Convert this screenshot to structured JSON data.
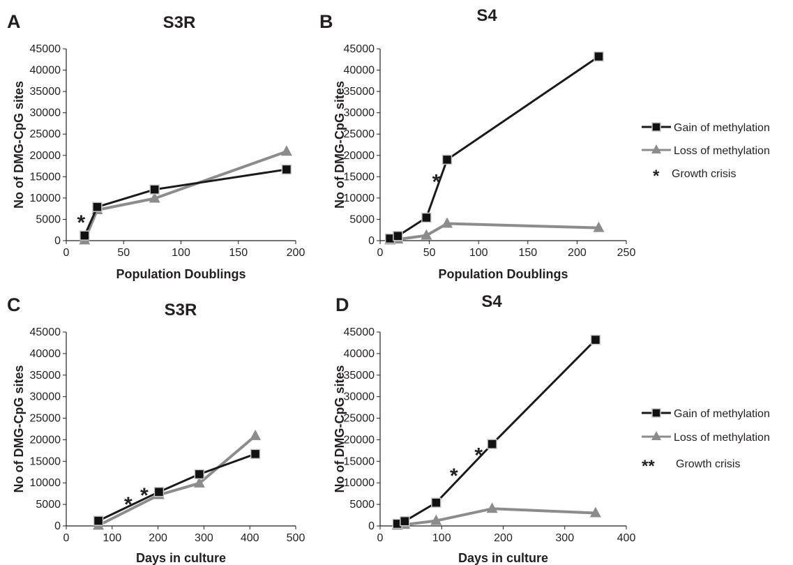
{
  "colors": {
    "gain": "#1a1a1a",
    "loss": "#8c8c8c",
    "marker_gain": "#111111",
    "marker_gain_edge": "#c8c8c8",
    "marker_loss": "#8c8c8c",
    "axis": "#231f20"
  },
  "legends": [
    {
      "gain_label": "Gain of methylation",
      "loss_label": "Loss of methylation",
      "crisis_label": "Growth crisis",
      "crisis_symbol": "*"
    },
    {
      "gain_label": "Gain of methylation",
      "loss_label": "Loss of methylation",
      "crisis_label": "Growth crisis",
      "crisis_symbol": "**"
    }
  ],
  "chart_data": [
    {
      "panel": "A",
      "type": "line",
      "title": "S3R",
      "xlabel": "Population Doublings",
      "ylabel": "No of DMG-CpG sites",
      "xlim": [
        0,
        200
      ],
      "ylim": [
        0,
        45000
      ],
      "xticks": [
        0,
        50,
        100,
        150,
        200
      ],
      "yticks": [
        0,
        5000,
        10000,
        15000,
        20000,
        25000,
        30000,
        35000,
        40000,
        45000
      ],
      "grid": false,
      "legend": "none",
      "series": [
        {
          "name": "Gain of methylation",
          "marker": "square",
          "x": [
            16,
            27,
            77,
            192
          ],
          "y": [
            1200,
            7900,
            12000,
            16700
          ]
        },
        {
          "name": "Loss of methylation",
          "marker": "triangle",
          "x": [
            16,
            27,
            77,
            192
          ],
          "y": [
            100,
            7200,
            9900,
            20900
          ]
        }
      ],
      "annotations": [
        {
          "text": "*",
          "x": 13,
          "y": 5200
        }
      ]
    },
    {
      "panel": "B",
      "type": "line",
      "title": "S4",
      "xlabel": "Population Doublings",
      "ylabel": "No of DMG-CpG sites",
      "xlim": [
        0,
        250
      ],
      "ylim": [
        0,
        45000
      ],
      "xticks": [
        0,
        50,
        100,
        150,
        200,
        250
      ],
      "yticks": [
        0,
        5000,
        10000,
        15000,
        20000,
        25000,
        30000,
        35000,
        40000,
        45000
      ],
      "grid": false,
      "legend": "right",
      "series": [
        {
          "name": "Gain of methylation",
          "marker": "square",
          "x": [
            10,
            18,
            47,
            68,
            222
          ],
          "y": [
            500,
            1100,
            5400,
            19000,
            43200
          ]
        },
        {
          "name": "Loss of methylation",
          "marker": "triangle",
          "x": [
            10,
            18,
            47,
            68,
            222
          ],
          "y": [
            100,
            300,
            1200,
            4000,
            3000
          ]
        }
      ],
      "annotations": [
        {
          "text": "*",
          "x": 57,
          "y": 14800
        }
      ]
    },
    {
      "panel": "C",
      "type": "line",
      "title": "S3R",
      "xlabel": "Days in culture",
      "ylabel": "No of DMG-CpG sites",
      "xlim": [
        0,
        500
      ],
      "ylim": [
        0,
        45000
      ],
      "xticks": [
        0,
        100,
        200,
        300,
        400,
        500
      ],
      "yticks": [
        0,
        5000,
        10000,
        15000,
        20000,
        25000,
        30000,
        35000,
        40000,
        45000
      ],
      "grid": false,
      "legend": "none",
      "series": [
        {
          "name": "Gain of methylation",
          "marker": "square",
          "x": [
            70,
            202,
            290,
            412
          ],
          "y": [
            1200,
            7900,
            12000,
            16700
          ]
        },
        {
          "name": "Loss of methylation",
          "marker": "triangle",
          "x": [
            70,
            202,
            290,
            412
          ],
          "y": [
            100,
            7200,
            9900,
            20900
          ]
        }
      ],
      "annotations": [
        {
          "text": "*",
          "x": 135,
          "y": 6000
        },
        {
          "text": "*",
          "x": 170,
          "y": 8100
        }
      ]
    },
    {
      "panel": "D",
      "type": "line",
      "title": "S4",
      "xlabel": "Days in culture",
      "ylabel": "No of DMG-CpG sites",
      "xlim": [
        0,
        400
      ],
      "ylim": [
        0,
        45000
      ],
      "xticks": [
        0,
        100,
        200,
        300,
        400
      ],
      "yticks": [
        0,
        5000,
        10000,
        15000,
        20000,
        25000,
        30000,
        35000,
        40000,
        45000
      ],
      "grid": false,
      "legend": "right",
      "series": [
        {
          "name": "Gain of methylation",
          "marker": "square",
          "x": [
            28,
            40,
            91,
            182,
            350
          ],
          "y": [
            500,
            1100,
            5400,
            19000,
            43200
          ]
        },
        {
          "name": "Loss of methylation",
          "marker": "triangle",
          "x": [
            28,
            40,
            91,
            182,
            350
          ],
          "y": [
            100,
            300,
            1200,
            4000,
            3000
          ]
        }
      ],
      "annotations": [
        {
          "text": "*",
          "x": 120,
          "y": 12600
        },
        {
          "text": "*",
          "x": 160,
          "y": 17400
        }
      ]
    }
  ]
}
